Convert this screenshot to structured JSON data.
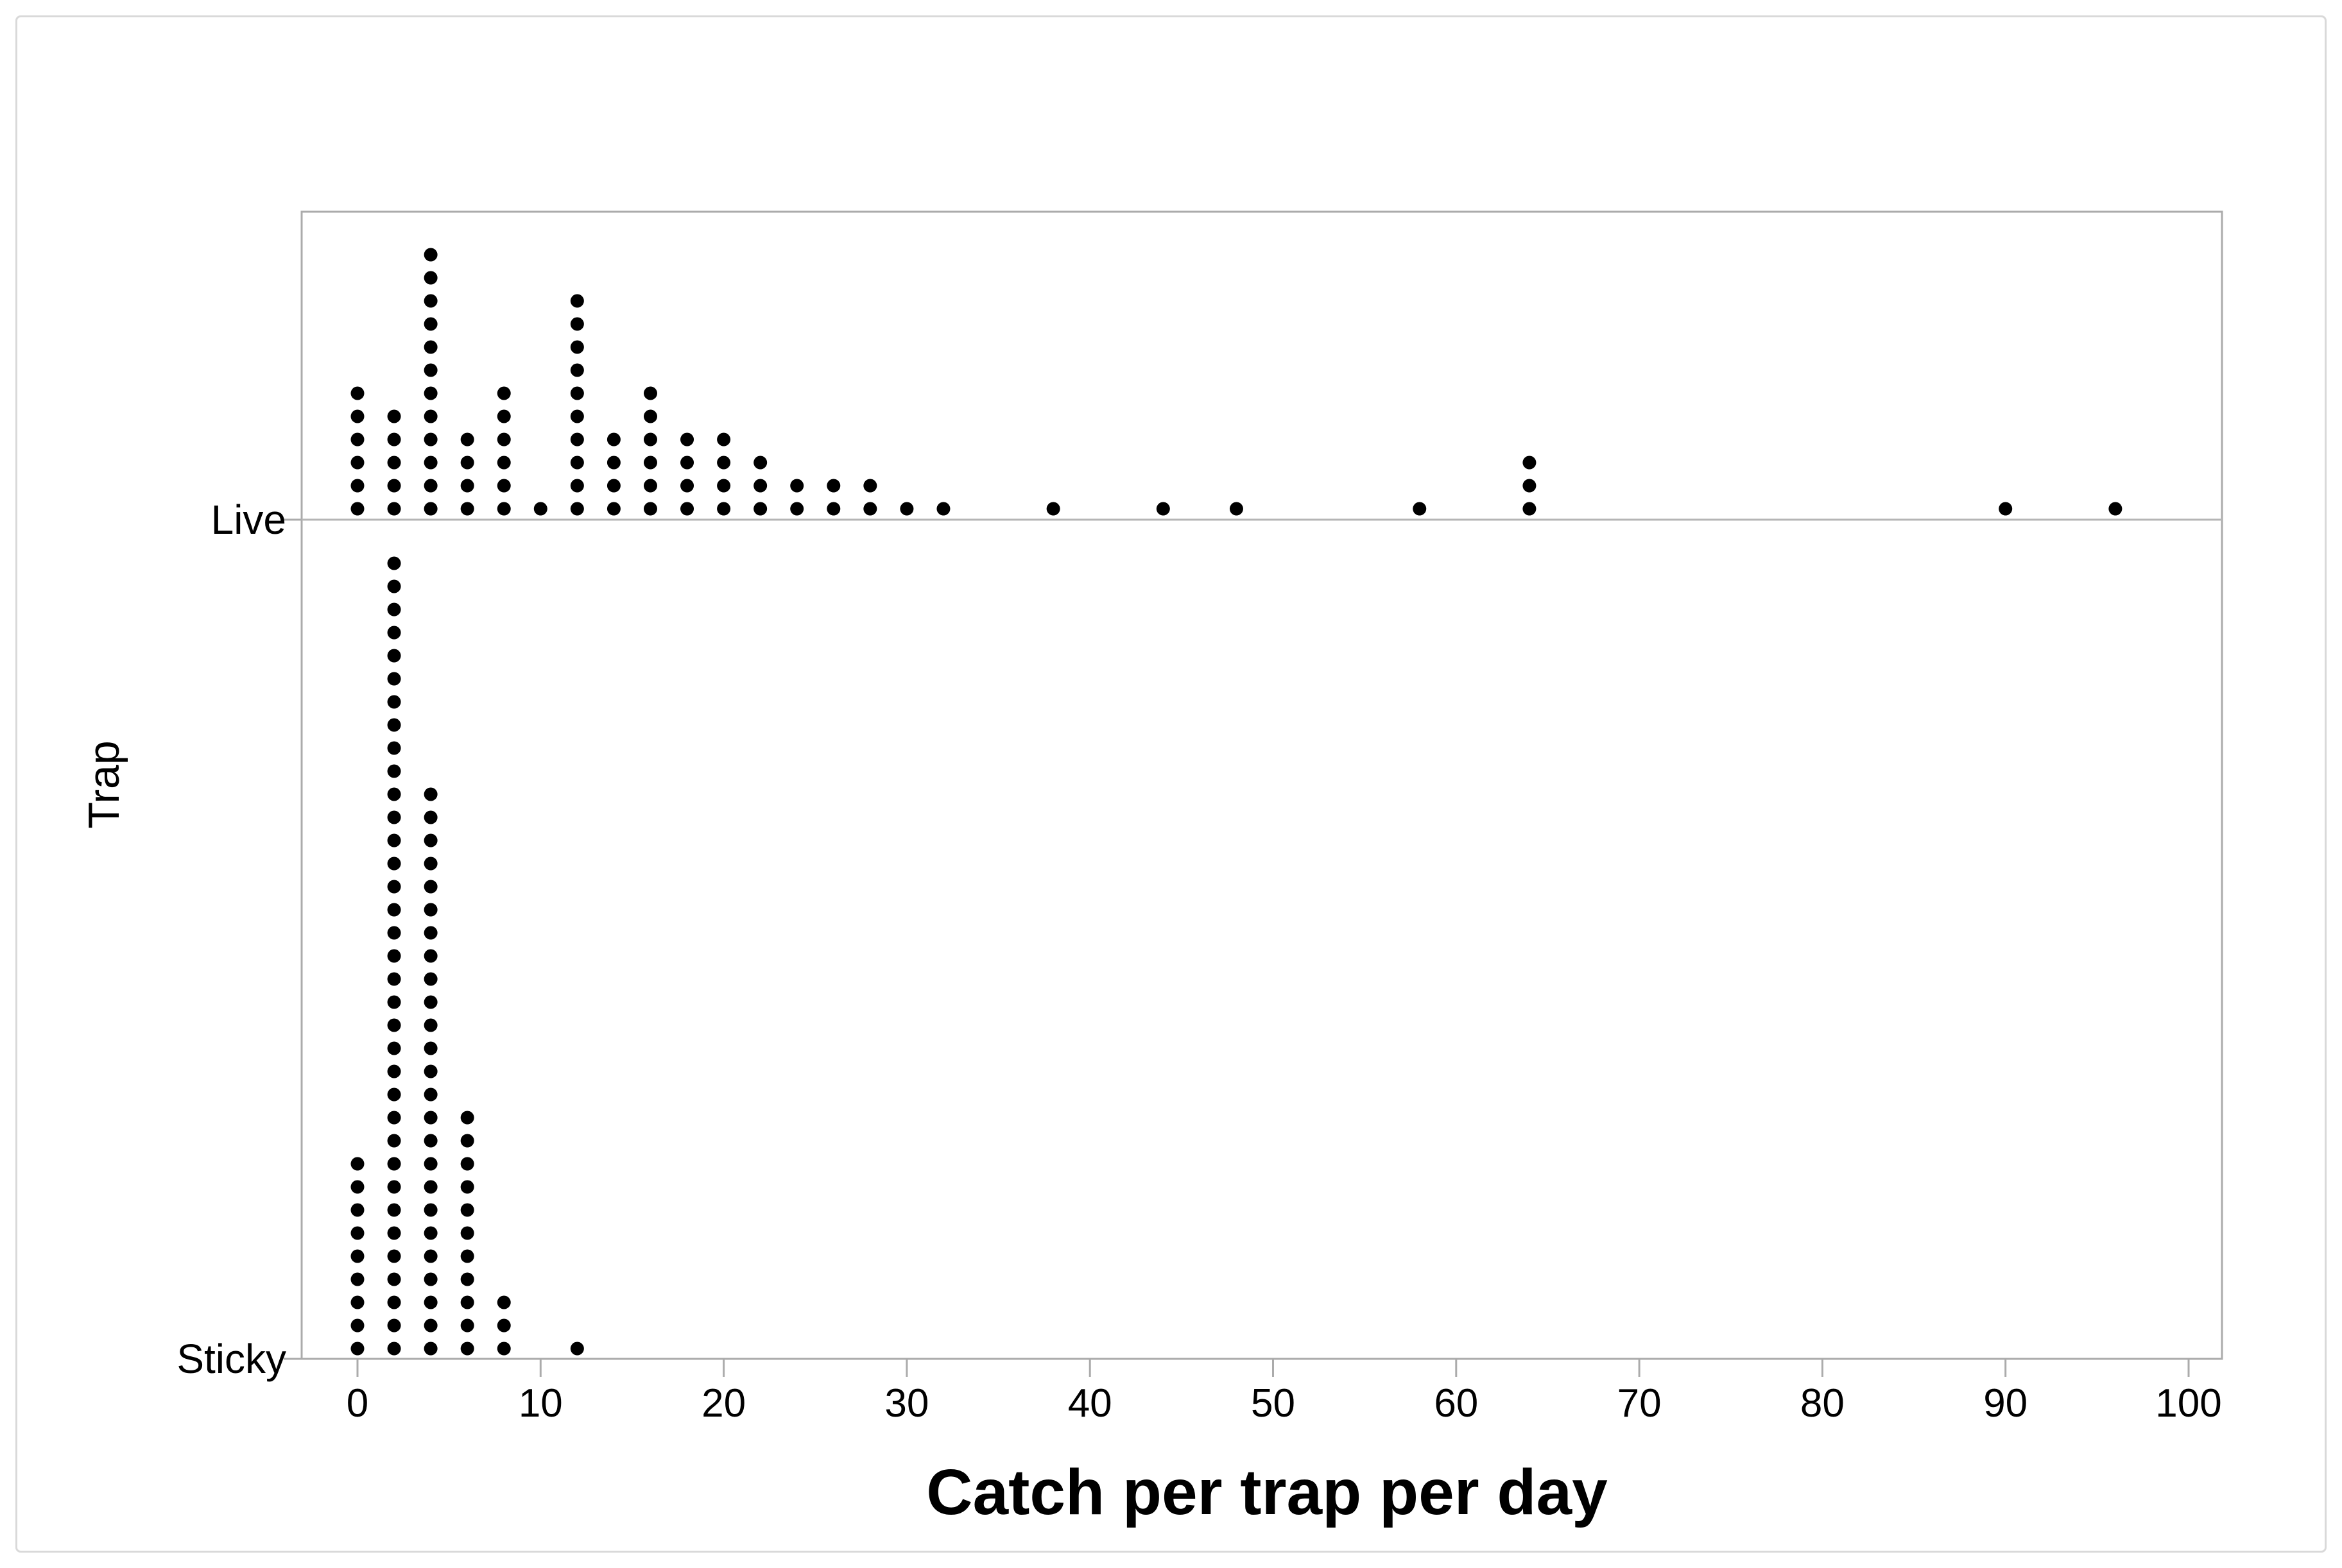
{
  "chart_data": {
    "type": "scatter",
    "subtype": "dotplot",
    "title": "",
    "xlabel": "Catch per trap per day",
    "ylabel": "Trap",
    "categories": [
      "Live",
      "Sticky"
    ],
    "x_ticks": [
      "0",
      "10",
      "20",
      "30",
      "40",
      "50",
      "60",
      "70",
      "80",
      "90",
      "100"
    ],
    "x_tick_values": [
      0,
      10,
      20,
      30,
      40,
      50,
      60,
      70,
      80,
      90,
      100
    ],
    "xlim": [
      0,
      102
    ],
    "grid": false,
    "legend": "none",
    "series": [
      {
        "name": "Live",
        "points": [
          {
            "x": 0,
            "count": 6
          },
          {
            "x": 2,
            "count": 5
          },
          {
            "x": 4,
            "count": 12
          },
          {
            "x": 6,
            "count": 4
          },
          {
            "x": 8,
            "count": 6
          },
          {
            "x": 10,
            "count": 1
          },
          {
            "x": 12,
            "count": 10
          },
          {
            "x": 14,
            "count": 4
          },
          {
            "x": 16,
            "count": 6
          },
          {
            "x": 18,
            "count": 4
          },
          {
            "x": 20,
            "count": 4
          },
          {
            "x": 22,
            "count": 3
          },
          {
            "x": 24,
            "count": 2
          },
          {
            "x": 26,
            "count": 2
          },
          {
            "x": 28,
            "count": 2
          },
          {
            "x": 30,
            "count": 1
          },
          {
            "x": 32,
            "count": 1
          },
          {
            "x": 38,
            "count": 1
          },
          {
            "x": 44,
            "count": 1
          },
          {
            "x": 48,
            "count": 1
          },
          {
            "x": 58,
            "count": 1
          },
          {
            "x": 64,
            "count": 3
          },
          {
            "x": 90,
            "count": 1
          },
          {
            "x": 96,
            "count": 1
          }
        ]
      },
      {
        "name": "Sticky",
        "points": [
          {
            "x": 0,
            "count": 9
          },
          {
            "x": 2,
            "count": 35
          },
          {
            "x": 4,
            "count": 25
          },
          {
            "x": 6,
            "count": 11
          },
          {
            "x": 8,
            "count": 3
          },
          {
            "x": 12,
            "count": 1
          }
        ]
      }
    ]
  },
  "labels": {
    "x_axis_title": "Catch per trap per day",
    "y_axis_title": "Trap",
    "category_live": "Live",
    "category_sticky": "Sticky"
  },
  "colors": {
    "dot": "#000000",
    "axis_line": "#ababab",
    "row_line": "#b5b5b5",
    "tick": "#ababab",
    "outer_border": "#d9d9d9",
    "text": "#000000"
  }
}
